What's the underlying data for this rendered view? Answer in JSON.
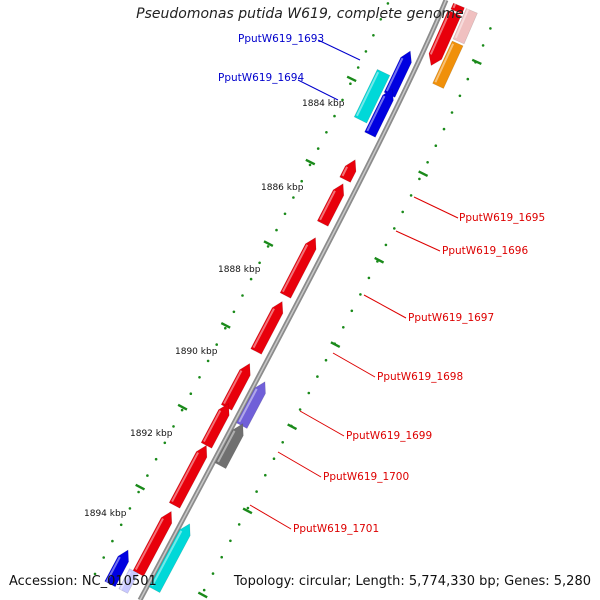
{
  "title": "Pseudomonas putida W619, complete genome",
  "accession": "Accession: NC_010501",
  "topology": "Topology: circular; Length: 5,774,330 bp; Genes: 5,280",
  "colors": {
    "backbone": "#8c8c8c",
    "forward_gene": "#e8000b",
    "reverse_gene": "#e8000b",
    "blue_gene": "#0000e0",
    "cyan_gene": "#00d8d8",
    "violet_gene": "#7060d8",
    "gray_gene": "#707070",
    "orange_gene": "#f0900a",
    "tick": "#1a8a1a",
    "label_blue": "#0000cc",
    "label_red": "#dd0000"
  },
  "ruler": [
    {
      "label": "1884 kbp"
    },
    {
      "label": "1886 kbp"
    },
    {
      "label": "1888 kbp"
    },
    {
      "label": "1890 kbp"
    },
    {
      "label": "1892 kbp"
    },
    {
      "label": "1894 kbp"
    }
  ],
  "gene_labels": [
    {
      "text": "PputW619_1693",
      "color": "blue"
    },
    {
      "text": "PputW619_1694",
      "color": "blue"
    },
    {
      "text": "PputW619_1695",
      "color": "red"
    },
    {
      "text": "PputW619_1696",
      "color": "red"
    },
    {
      "text": "PputW619_1697",
      "color": "red"
    },
    {
      "text": "PputW619_1698",
      "color": "red"
    },
    {
      "text": "PputW619_1699",
      "color": "red"
    },
    {
      "text": "PputW619_1700",
      "color": "red"
    },
    {
      "text": "PputW619_1701",
      "color": "red"
    }
  ]
}
